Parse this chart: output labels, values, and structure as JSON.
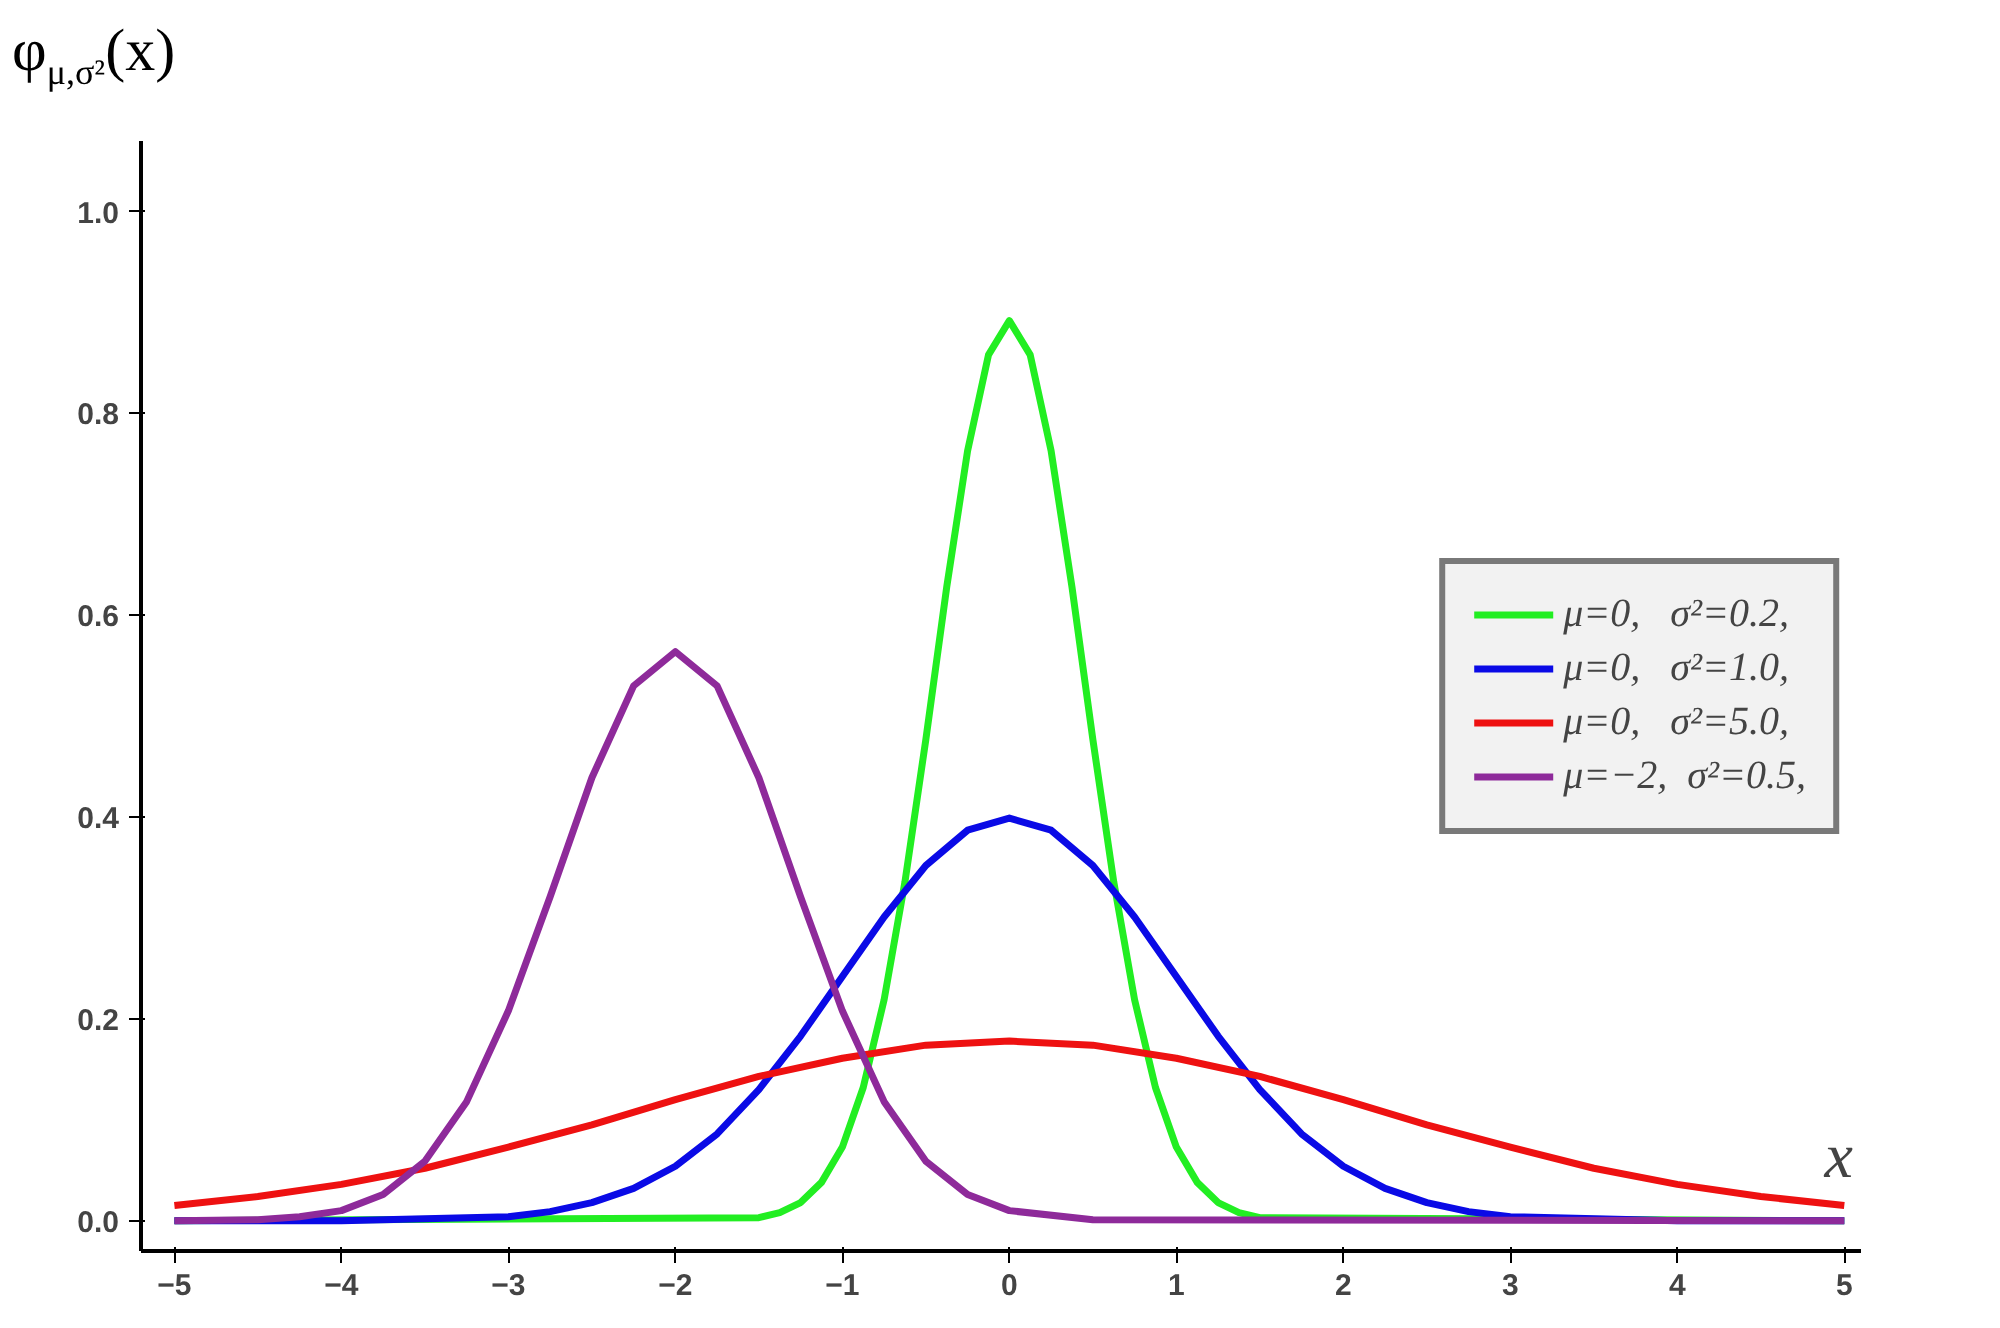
{
  "chart_data": {
    "type": "line",
    "ylabel": "φ$_{μ,σ²}$(x)",
    "xlabel": "x",
    "xlim": [
      -5.2,
      5.1
    ],
    "ylim": [
      -0.03,
      1.07
    ],
    "xticks": [
      -5,
      -4,
      -3,
      -2,
      -1,
      0,
      1,
      2,
      3,
      4,
      5
    ],
    "yticks": [
      {
        "value": 0,
        "label": "0.0"
      },
      0.2,
      0.4,
      0.6,
      0.8,
      {
        "value": 1,
        "label": "1.0"
      }
    ],
    "grid": false,
    "legend": "right",
    "marker": "none",
    "line_style": "solid",
    "series": [
      {
        "name": "μ=0,   σ²=0.2,",
        "color": "#22ee22",
        "x": [
          -5,
          -1.5,
          -1.375,
          -1.25,
          -1.125,
          -1,
          -0.875,
          -0.75,
          -0.625,
          -0.5,
          -0.375,
          -0.25,
          -0.125,
          0,
          0.125,
          0.25,
          0.375,
          0.5,
          0.625,
          0.75,
          0.875,
          1,
          1.125,
          1.25,
          1.375,
          1.5,
          5
        ],
        "values": [
          0,
          0.003,
          0.008,
          0.018,
          0.038,
          0.073,
          0.132,
          0.219,
          0.336,
          0.477,
          0.628,
          0.763,
          0.858,
          0.892,
          0.858,
          0.763,
          0.628,
          0.477,
          0.336,
          0.219,
          0.132,
          0.073,
          0.038,
          0.018,
          0.008,
          0.003,
          0
        ]
      },
      {
        "name": "μ=0,   σ²=1.0,",
        "color": "#0a0ae6",
        "x": [
          -5,
          -4,
          -3,
          -2.75,
          -2.5,
          -2.25,
          -2,
          -1.75,
          -1.5,
          -1.25,
          -1,
          -0.75,
          -0.5,
          -0.25,
          0,
          0.25,
          0.5,
          0.75,
          1,
          1.25,
          1.5,
          1.75,
          2,
          2.25,
          2.5,
          2.75,
          3,
          4,
          5
        ],
        "values": [
          0,
          0,
          0.004,
          0.009,
          0.018,
          0.032,
          0.054,
          0.086,
          0.13,
          0.183,
          0.242,
          0.301,
          0.352,
          0.387,
          0.399,
          0.387,
          0.352,
          0.301,
          0.242,
          0.183,
          0.13,
          0.086,
          0.054,
          0.032,
          0.018,
          0.009,
          0.004,
          0,
          0
        ]
      },
      {
        "name": "μ=0,   σ²=5.0,",
        "color": "#ee1111",
        "x": [
          -5,
          -4.5,
          -4,
          -3.5,
          -3,
          -2.5,
          -2,
          -1.5,
          -1,
          -0.5,
          0,
          0.5,
          1,
          1.5,
          2,
          2.5,
          3,
          3.5,
          4,
          4.5,
          5
        ],
        "values": [
          0.015,
          0.024,
          0.036,
          0.052,
          0.073,
          0.095,
          0.12,
          0.143,
          0.161,
          0.174,
          0.178,
          0.174,
          0.161,
          0.143,
          0.12,
          0.095,
          0.073,
          0.052,
          0.036,
          0.024,
          0.015
        ]
      },
      {
        "name": "μ=−2,  σ²=0.5,",
        "color": "#8e2a9a",
        "x": [
          -5,
          -4.5,
          -4.25,
          -4,
          -3.75,
          -3.5,
          -3.25,
          -3,
          -2.75,
          -2.5,
          -2.25,
          -2,
          -1.75,
          -1.5,
          -1.25,
          -1,
          -0.75,
          -0.5,
          -0.25,
          0,
          0.5,
          5
        ],
        "values": [
          0,
          0.001,
          0.004,
          0.01,
          0.026,
          0.059,
          0.118,
          0.208,
          0.321,
          0.439,
          0.53,
          0.564,
          0.53,
          0.439,
          0.321,
          0.208,
          0.118,
          0.059,
          0.026,
          0.01,
          0.001,
          0
        ]
      }
    ]
  }
}
